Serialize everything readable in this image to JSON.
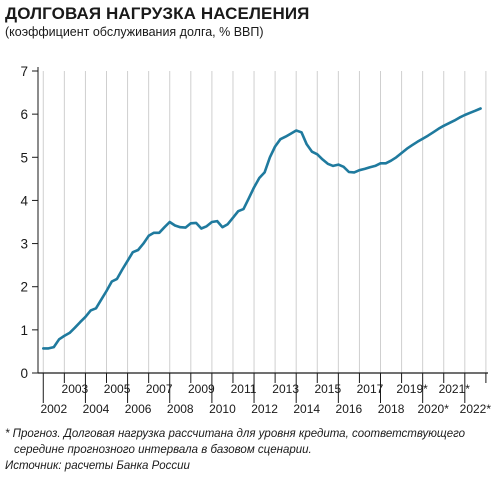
{
  "title": "ДОЛГОВАЯ НАГРУЗКА НАСЕЛЕНИЯ",
  "subtitle": "(коэффициент обслуживания долга, % ВВП)",
  "footnote": {
    "line1": "* Прогноз. Долговая нагрузка рассчитана для уровня кредита, соответствующего",
    "line2": "середине прогнозного интервала в базовом сценарии.",
    "source": "Источник: расчеты Банка России"
  },
  "colors": {
    "line": "#1f7a9e",
    "grid": "#cfcfcf",
    "axis": "#1a1a1a"
  },
  "chart_data": {
    "type": "line",
    "title": "ДОЛГОВАЯ НАГРУЗКА НАСЕЛЕНИЯ",
    "subtitle": "(коэффициент обслуживания долга, % ВВП)",
    "xlabel": "",
    "ylabel": "",
    "ylim": [
      0,
      7
    ],
    "xlim": [
      2001.75,
      2023.1
    ],
    "yticks": [
      "0",
      "1",
      "2",
      "3",
      "4",
      "5",
      "6",
      "7"
    ],
    "xticks_top": [
      "2003",
      "2005",
      "2007",
      "2009",
      "2011",
      "2013",
      "2015",
      "2017",
      "2019*",
      "2021*"
    ],
    "xticks_bottom": [
      "2002",
      "2004",
      "2006",
      "2008",
      "2010",
      "2012",
      "2014",
      "2016",
      "2018",
      "2020*",
      "2022*"
    ],
    "grid": "vertical",
    "legend": "none",
    "series": [
      {
        "x": [
          2002.0,
          2002.25,
          2002.5,
          2002.75,
          2003.0,
          2003.25,
          2003.5,
          2003.75,
          2004.0,
          2004.25,
          2004.5,
          2004.75,
          2005.0,
          2005.25,
          2005.5,
          2005.75,
          2006.0,
          2006.25,
          2006.5,
          2006.75,
          2007.0,
          2007.25,
          2007.5,
          2007.75,
          2008.0,
          2008.25,
          2008.5,
          2008.75,
          2009.0,
          2009.25,
          2009.5,
          2009.75,
          2010.0,
          2010.25,
          2010.5,
          2010.75,
          2011.0,
          2011.25,
          2011.5,
          2011.75,
          2012.0,
          2012.25,
          2012.5,
          2012.75,
          2013.0,
          2013.25,
          2013.5,
          2013.75,
          2014.0,
          2014.25,
          2014.5,
          2014.75,
          2015.0,
          2015.25,
          2015.5,
          2015.75,
          2016.0,
          2016.25,
          2016.5,
          2016.75,
          2017.0,
          2017.25,
          2017.5,
          2017.75,
          2018.0,
          2018.25,
          2018.5,
          2018.75,
          2019.0,
          2019.25,
          2019.5,
          2019.75,
          2020.0,
          2020.25,
          2020.5,
          2020.75,
          2021.0,
          2021.25,
          2021.5,
          2021.75,
          2022.0,
          2022.25,
          2022.5,
          2022.75
        ],
        "values": [
          0.57,
          0.57,
          0.6,
          0.78,
          0.86,
          0.93,
          1.05,
          1.18,
          1.3,
          1.45,
          1.5,
          1.7,
          1.9,
          2.12,
          2.18,
          2.4,
          2.6,
          2.8,
          2.85,
          3.0,
          3.18,
          3.25,
          3.25,
          3.38,
          3.5,
          3.42,
          3.38,
          3.37,
          3.47,
          3.48,
          3.35,
          3.4,
          3.5,
          3.52,
          3.38,
          3.45,
          3.6,
          3.75,
          3.8,
          4.05,
          4.3,
          4.52,
          4.65,
          5.0,
          5.25,
          5.42,
          5.48,
          5.55,
          5.62,
          5.58,
          5.3,
          5.13,
          5.07,
          4.95,
          4.85,
          4.8,
          4.83,
          4.78,
          4.66,
          4.65,
          4.7,
          4.73,
          4.77,
          4.8,
          4.86,
          4.86,
          4.92,
          5.0,
          5.1,
          5.2,
          5.28,
          5.36,
          5.43,
          5.5,
          5.58,
          5.66,
          5.73,
          5.79,
          5.85,
          5.92,
          5.98,
          6.03,
          6.08,
          6.13
        ]
      }
    ]
  }
}
